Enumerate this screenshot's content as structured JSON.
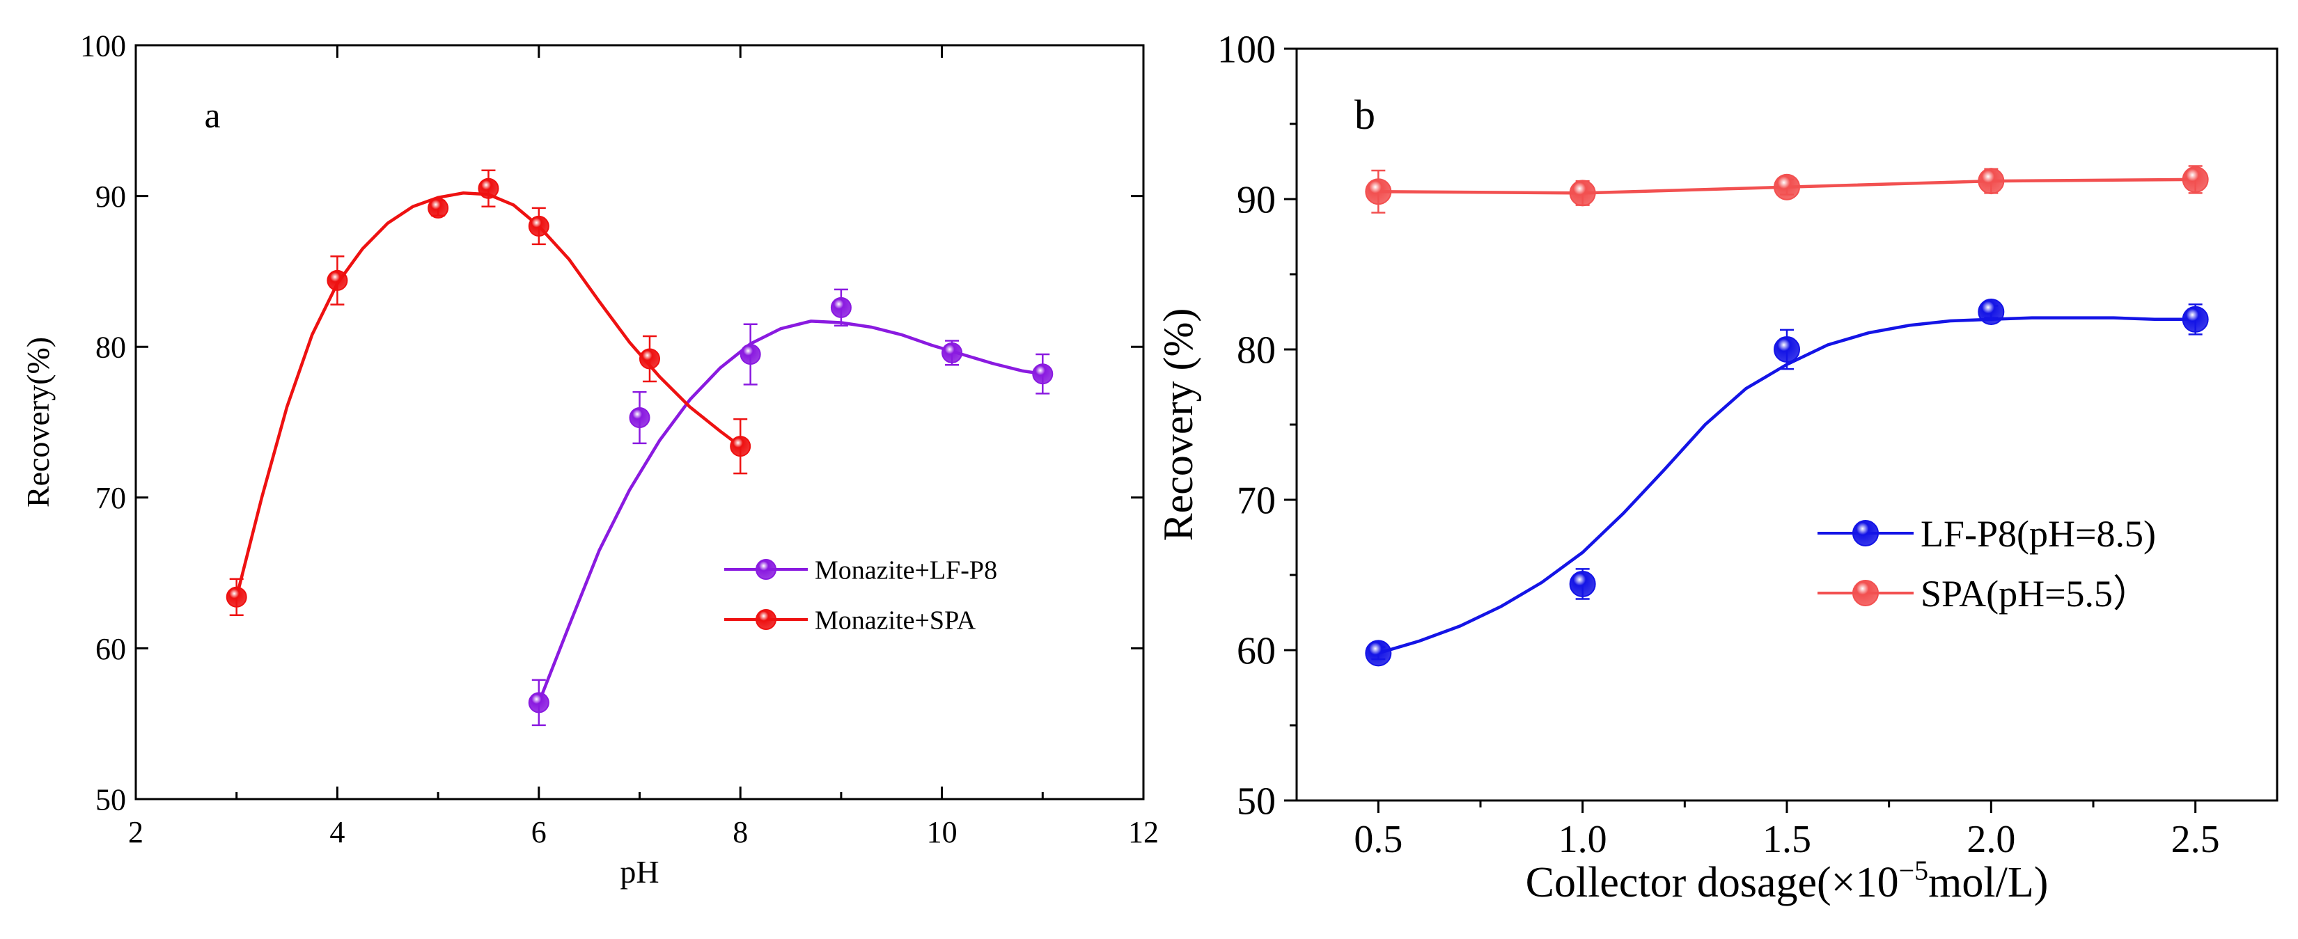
{
  "chart_data": [
    {
      "id": "a",
      "type": "scatter",
      "panel_label": "a",
      "xlabel": "pH",
      "ylabel": "Recovery(%)",
      "xlim": [
        2,
        12
      ],
      "ylim": [
        50,
        100
      ],
      "x_ticks": [
        2,
        4,
        6,
        8,
        10,
        12
      ],
      "y_ticks": [
        50,
        60,
        70,
        80,
        90,
        100
      ],
      "legend_position": "center-right",
      "series": [
        {
          "name": "Monazite+LF-P8",
          "color": "#8a1ae0",
          "x": [
            6.0,
            7.0,
            8.1,
            9.0,
            10.1,
            11.0
          ],
          "y": [
            56.4,
            75.3,
            79.5,
            82.6,
            79.6,
            78.2
          ],
          "error": [
            1.5,
            1.7,
            2.0,
            1.2,
            0.8,
            1.3
          ],
          "fit_x": [
            6.0,
            6.3,
            6.6,
            6.9,
            7.2,
            7.5,
            7.8,
            8.1,
            8.4,
            8.7,
            9.0,
            9.3,
            9.6,
            9.9,
            10.2,
            10.5,
            10.8,
            11.0
          ],
          "fit_y": [
            56.4,
            61.5,
            66.5,
            70.5,
            73.8,
            76.5,
            78.6,
            80.2,
            81.2,
            81.7,
            81.6,
            81.3,
            80.8,
            80.1,
            79.5,
            78.9,
            78.4,
            78.2
          ]
        },
        {
          "name": "Monazite+SPA",
          "color": "#ee1111",
          "x": [
            3.0,
            4.0,
            5.0,
            5.5,
            6.0,
            7.1,
            8.0
          ],
          "y": [
            63.4,
            84.4,
            89.2,
            90.5,
            88.0,
            79.2,
            73.4
          ],
          "error": [
            1.2,
            1.6,
            0.5,
            1.2,
            1.2,
            1.5,
            1.8
          ],
          "fit_x": [
            3.0,
            3.25,
            3.5,
            3.75,
            4.0,
            4.25,
            4.5,
            4.75,
            5.0,
            5.25,
            5.5,
            5.75,
            6.0,
            6.3,
            6.6,
            6.9,
            7.2,
            7.5,
            7.8,
            8.0
          ],
          "fit_y": [
            63.4,
            70.0,
            76.0,
            80.8,
            84.2,
            86.5,
            88.2,
            89.3,
            89.9,
            90.2,
            90.1,
            89.4,
            88.0,
            85.8,
            83.0,
            80.3,
            78.0,
            76.0,
            74.4,
            73.4
          ]
        }
      ]
    },
    {
      "id": "b",
      "type": "scatter",
      "panel_label": "b",
      "xlabel_main": "Collector  dosage(×10",
      "xlabel_sup": "−5",
      "xlabel_tail": "mol/L)",
      "ylabel": "Recovery (%)",
      "xlim": [
        0.3,
        2.7
      ],
      "ylim": [
        50,
        100
      ],
      "x_ticks": [
        0.5,
        1.0,
        1.5,
        2.0,
        2.5
      ],
      "x_tick_labels": [
        "0.5",
        "1.0",
        "1.5",
        "2.0",
        "2.5"
      ],
      "y_ticks": [
        50,
        60,
        70,
        80,
        90,
        100
      ],
      "legend_position": "center-right",
      "series": [
        {
          "name": "LF-P8(pH=8.5)",
          "color": "#1414e6",
          "x": [
            0.5,
            1.0,
            1.5,
            2.0,
            2.5
          ],
          "y": [
            59.8,
            64.4,
            80.0,
            82.5,
            82.0
          ],
          "error": [
            0.4,
            1.0,
            1.3,
            0.4,
            1.0
          ],
          "fit_x": [
            0.5,
            0.6,
            0.7,
            0.8,
            0.9,
            1.0,
            1.1,
            1.2,
            1.3,
            1.4,
            1.5,
            1.6,
            1.7,
            1.8,
            1.9,
            2.0,
            2.1,
            2.2,
            2.3,
            2.4,
            2.5
          ],
          "fit_y": [
            59.8,
            60.6,
            61.6,
            62.9,
            64.5,
            66.5,
            69.1,
            72.0,
            75.0,
            77.4,
            79.0,
            80.3,
            81.1,
            81.6,
            81.9,
            82.0,
            82.1,
            82.1,
            82.1,
            82.0,
            82.0
          ]
        },
        {
          "name": "SPA(pH=5.5）",
          "color": "#f25050",
          "x": [
            0.5,
            1.0,
            1.5,
            2.0,
            2.5
          ],
          "y": [
            90.5,
            90.4,
            90.8,
            91.2,
            91.3
          ],
          "error": [
            1.4,
            0.8,
            0.5,
            0.8,
            0.9
          ],
          "fit_x": [
            0.5,
            1.0,
            1.5,
            2.0,
            2.5
          ],
          "fit_y": [
            90.5,
            90.4,
            90.8,
            91.2,
            91.3
          ]
        }
      ]
    }
  ]
}
